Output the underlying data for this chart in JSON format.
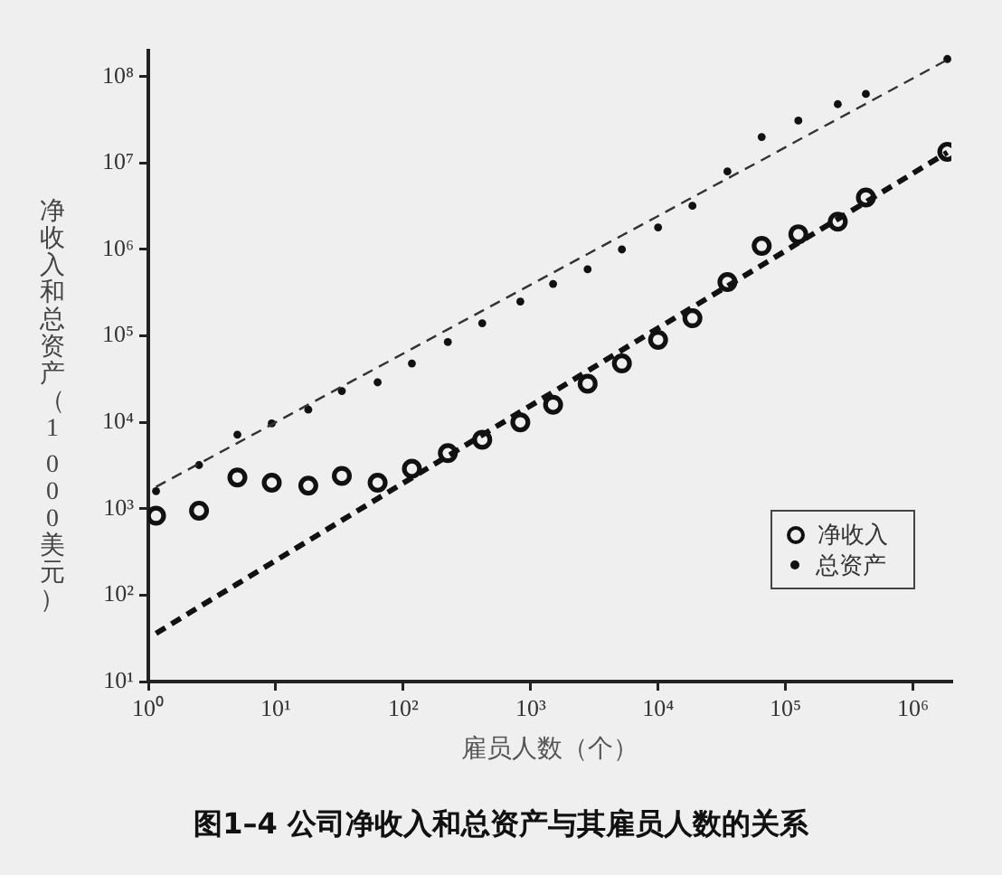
{
  "chart_data": {
    "type": "scatter",
    "title": "图1–4 公司净收入和总资产与其雇员人数的关系",
    "xlabel": "雇员人数（个）",
    "ylabel": "净收入和总资产（1 000美元）",
    "log": "xy",
    "xlim": [
      1,
      2000000
    ],
    "ylim": [
      10,
      200000000
    ],
    "xticks": [
      {
        "value": 1,
        "label": "10⁰"
      },
      {
        "value": 10,
        "label": "10¹"
      },
      {
        "value": 100,
        "label": "10²"
      },
      {
        "value": 1000,
        "label": "10³"
      },
      {
        "value": 10000,
        "label": "10⁴"
      },
      {
        "value": 100000,
        "label": "10⁵"
      },
      {
        "value": 1000000,
        "label": "10⁶"
      }
    ],
    "yticks": [
      {
        "value": 10,
        "label": "10¹"
      },
      {
        "value": 100,
        "label": "10²"
      },
      {
        "value": 1000,
        "label": "10³"
      },
      {
        "value": 10000,
        "label": "10⁴"
      },
      {
        "value": 100000,
        "label": "10⁵"
      },
      {
        "value": 1000000,
        "label": "10⁶"
      },
      {
        "value": 10000000,
        "label": "10⁷"
      },
      {
        "value": 100000000,
        "label": "10⁸"
      }
    ],
    "x": [
      1.15,
      2.5,
      5,
      9.3,
      18,
      33,
      63,
      117,
      224,
      417,
      830,
      1500,
      2800,
      5200,
      10000,
      18600,
      35000,
      65000,
      126000,
      257000,
      427000,
      1860000
    ],
    "legend": "bottom right",
    "marker": "circle",
    "series": [
      {
        "name": "净收入",
        "color": "#111111",
        "values": [
          830,
          950,
          2300,
          2000,
          1850,
          2400,
          2000,
          2900,
          4400,
          6300,
          10000,
          16000,
          28000,
          48000,
          90000,
          160000,
          420000,
          1100000,
          1500000,
          2100000,
          4000000,
          13500000
        ]
      },
      {
        "name": "总资产",
        "color": "#111111",
        "values": [
          1600,
          3200,
          7200,
          9700,
          14000,
          23000,
          29000,
          48000,
          85000,
          140000,
          250000,
          400000,
          590000,
          1000000,
          1800000,
          3200000,
          8000000,
          20000000,
          31000000,
          48000000,
          63000000,
          160000000
        ]
      },
      {
        "type": "line",
        "color": "#333333",
        "values": [
          1790,
          3320,
          5750,
          9440,
          16000,
          25900,
          43200,
          70800,
          119000,
          195000,
          337000,
          540000,
          887000,
          1450000,
          2440000,
          4010000,
          6620000,
          10800000,
          18400000,
          32400000,
          48500000,
          157000000
        ],
        "line_style": "dashed",
        "marker": "none"
      },
      {
        "type": "line",
        "color": "#111111",
        "values": [
          36,
          73,
          135,
          236,
          426,
          734,
          1310,
          2280,
          4080,
          7130,
          13200,
          22400,
          39300,
          68400,
          123000,
          214000,
          377000,
          656000,
          1190000,
          2250000,
          3540000,
          13300000
        ],
        "line_style": "dashed",
        "marker": "none"
      }
    ]
  }
}
